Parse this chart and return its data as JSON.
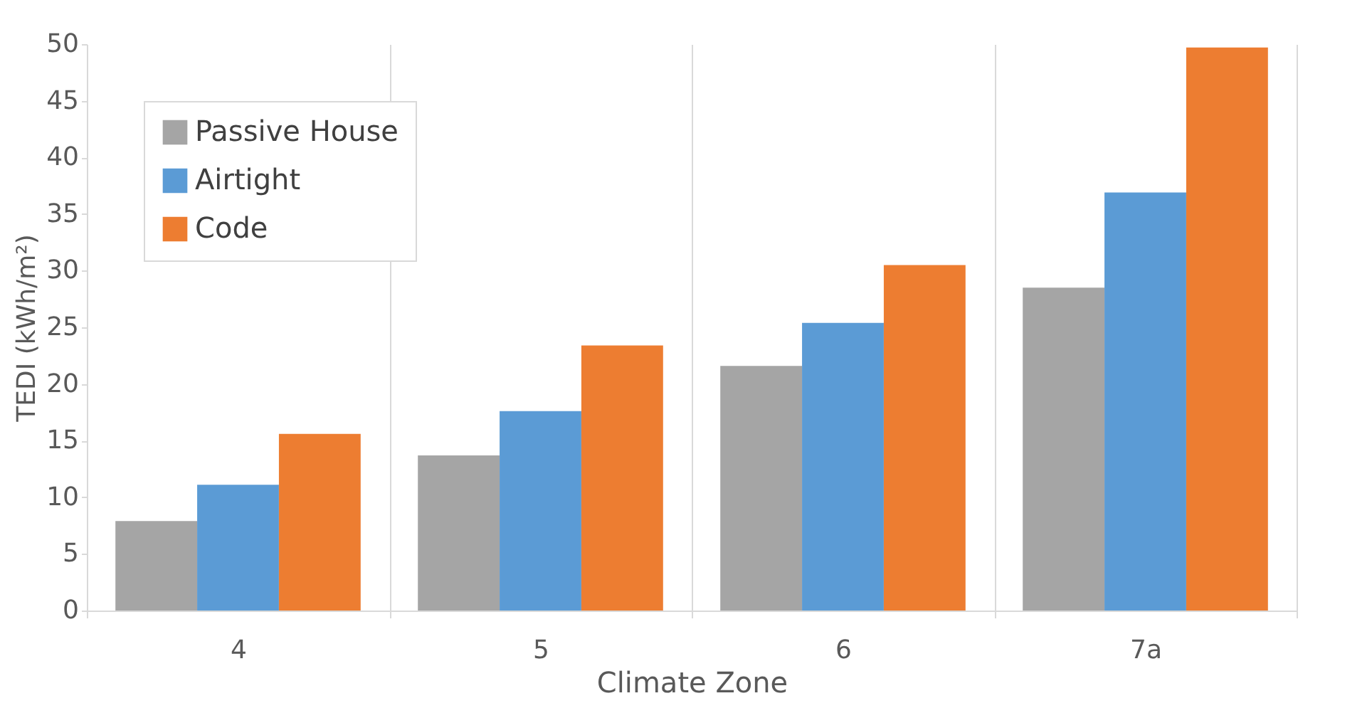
{
  "chart_data": {
    "type": "bar",
    "xlabel": "Climate Zone",
    "ylabel": "TEDI (kWh/m²)",
    "categories": [
      "4",
      "5",
      "6",
      "7a"
    ],
    "series": [
      {
        "name": "Passive House",
        "color": "#a5a5a5",
        "values": [
          7.9,
          13.7,
          21.6,
          28.5
        ]
      },
      {
        "name": "Airtight",
        "color": "#5b9bd5",
        "values": [
          11.1,
          17.6,
          25.4,
          36.9
        ]
      },
      {
        "name": "Code",
        "color": "#ed7d31",
        "values": [
          15.6,
          23.4,
          30.5,
          49.7
        ]
      }
    ],
    "ylim": [
      0,
      50
    ],
    "yticks": [
      0,
      5,
      10,
      15,
      20,
      25,
      30,
      35,
      40,
      45,
      50
    ],
    "grid": "x",
    "legend": "top left"
  }
}
